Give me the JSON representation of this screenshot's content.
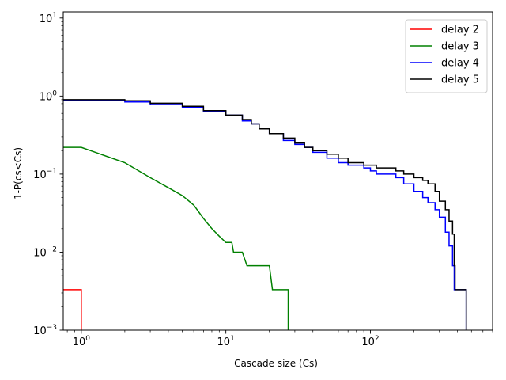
{
  "chart_data": {
    "type": "line",
    "title": "",
    "xlabel": "Cascade size (Cs)",
    "ylabel": "1-P(cs<Cs)",
    "xscale": "log",
    "yscale": "log",
    "xlim": [
      0.75,
      700
    ],
    "ylim": [
      0.001,
      12
    ],
    "xticks": [
      {
        "value": 1,
        "base": "10",
        "exp": "0"
      },
      {
        "value": 10,
        "base": "10",
        "exp": "1"
      },
      {
        "value": 100,
        "base": "10",
        "exp": "2"
      }
    ],
    "yticks": [
      {
        "value": 0.001,
        "base": "10",
        "exp": "−3"
      },
      {
        "value": 0.01,
        "base": "10",
        "exp": "−2"
      },
      {
        "value": 0.1,
        "base": "10",
        "exp": "−1"
      },
      {
        "value": 1,
        "base": "10",
        "exp": "0"
      },
      {
        "value": 10,
        "base": "10",
        "exp": "1"
      }
    ],
    "grid": false,
    "legend_position": "top-right",
    "series": [
      {
        "name": "delay 2",
        "color": "#ff0000",
        "step": true,
        "x": [
          0.5,
          1,
          1
        ],
        "y": [
          0.0033,
          0.0033,
          0.0009
        ]
      },
      {
        "name": "delay 3",
        "color": "#008000",
        "step": false,
        "x": [
          0.5,
          1,
          2,
          3,
          4,
          5,
          6,
          7,
          8,
          9,
          10,
          11,
          11.3,
          12,
          13,
          14,
          15,
          20,
          21,
          22,
          26,
          27,
          27
        ],
        "y": [
          0.22,
          0.22,
          0.14,
          0.09,
          0.067,
          0.053,
          0.04,
          0.027,
          0.02,
          0.016,
          0.0133,
          0.0133,
          0.01,
          0.01,
          0.01,
          0.0067,
          0.0067,
          0.0067,
          0.0033,
          0.0033,
          0.0033,
          0.0033,
          0.0009
        ]
      },
      {
        "name": "delay 4",
        "color": "#0000ff",
        "step": true,
        "x": [
          0.5,
          1,
          2,
          3,
          5,
          7,
          10,
          13,
          15,
          17,
          20,
          25,
          30,
          35,
          40,
          50,
          60,
          70,
          90,
          100,
          110,
          150,
          170,
          200,
          230,
          250,
          280,
          300,
          330,
          350,
          370,
          380,
          390,
          410,
          420,
          450,
          460
        ],
        "y": [
          0.88,
          0.88,
          0.84,
          0.78,
          0.72,
          0.64,
          0.57,
          0.48,
          0.44,
          0.38,
          0.33,
          0.27,
          0.24,
          0.22,
          0.19,
          0.16,
          0.14,
          0.13,
          0.12,
          0.11,
          0.1,
          0.09,
          0.075,
          0.06,
          0.05,
          0.043,
          0.035,
          0.028,
          0.018,
          0.012,
          0.0067,
          0.0033,
          0.0033,
          0.0033,
          0.0033,
          0.0033,
          0.0009
        ]
      },
      {
        "name": "delay 5",
        "color": "#000000",
        "step": true,
        "x": [
          0.5,
          1,
          2,
          3,
          5,
          7,
          10,
          13,
          15,
          17,
          20,
          25,
          30,
          35,
          40,
          50,
          60,
          70,
          90,
          100,
          110,
          150,
          170,
          200,
          230,
          250,
          280,
          300,
          330,
          350,
          370,
          380,
          385,
          390,
          410,
          420,
          450,
          460
        ],
        "y": [
          0.9,
          0.9,
          0.87,
          0.81,
          0.74,
          0.65,
          0.57,
          0.5,
          0.44,
          0.38,
          0.33,
          0.29,
          0.25,
          0.22,
          0.2,
          0.18,
          0.16,
          0.14,
          0.13,
          0.13,
          0.12,
          0.11,
          0.1,
          0.09,
          0.083,
          0.075,
          0.06,
          0.045,
          0.035,
          0.025,
          0.017,
          0.0067,
          0.0033,
          0.0033,
          0.0033,
          0.0033,
          0.0033,
          0.0009
        ]
      }
    ]
  }
}
